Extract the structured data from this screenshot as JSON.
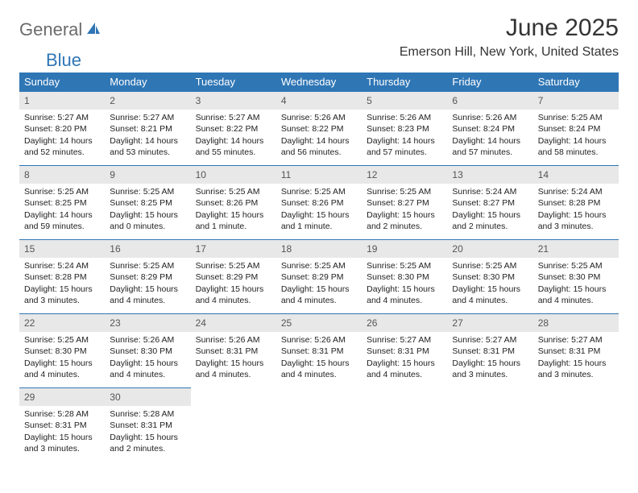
{
  "logo": {
    "part1": "General",
    "part2": "Blue"
  },
  "title": "June 2025",
  "location": "Emerson Hill, New York, United States",
  "colors": {
    "header_bg": "#2f76b5",
    "header_text": "#ffffff",
    "daynum_bg": "#e8e8e8",
    "border": "#2f76b5",
    "logo_gray": "#6b6b6b",
    "logo_blue": "#2f76b5"
  },
  "day_headers": [
    "Sunday",
    "Monday",
    "Tuesday",
    "Wednesday",
    "Thursday",
    "Friday",
    "Saturday"
  ],
  "days": [
    {
      "n": "1",
      "sr": "Sunrise: 5:27 AM",
      "ss": "Sunset: 8:20 PM",
      "dl": "Daylight: 14 hours and 52 minutes."
    },
    {
      "n": "2",
      "sr": "Sunrise: 5:27 AM",
      "ss": "Sunset: 8:21 PM",
      "dl": "Daylight: 14 hours and 53 minutes."
    },
    {
      "n": "3",
      "sr": "Sunrise: 5:27 AM",
      "ss": "Sunset: 8:22 PM",
      "dl": "Daylight: 14 hours and 55 minutes."
    },
    {
      "n": "4",
      "sr": "Sunrise: 5:26 AM",
      "ss": "Sunset: 8:22 PM",
      "dl": "Daylight: 14 hours and 56 minutes."
    },
    {
      "n": "5",
      "sr": "Sunrise: 5:26 AM",
      "ss": "Sunset: 8:23 PM",
      "dl": "Daylight: 14 hours and 57 minutes."
    },
    {
      "n": "6",
      "sr": "Sunrise: 5:26 AM",
      "ss": "Sunset: 8:24 PM",
      "dl": "Daylight: 14 hours and 57 minutes."
    },
    {
      "n": "7",
      "sr": "Sunrise: 5:25 AM",
      "ss": "Sunset: 8:24 PM",
      "dl": "Daylight: 14 hours and 58 minutes."
    },
    {
      "n": "8",
      "sr": "Sunrise: 5:25 AM",
      "ss": "Sunset: 8:25 PM",
      "dl": "Daylight: 14 hours and 59 minutes."
    },
    {
      "n": "9",
      "sr": "Sunrise: 5:25 AM",
      "ss": "Sunset: 8:25 PM",
      "dl": "Daylight: 15 hours and 0 minutes."
    },
    {
      "n": "10",
      "sr": "Sunrise: 5:25 AM",
      "ss": "Sunset: 8:26 PM",
      "dl": "Daylight: 15 hours and 1 minute."
    },
    {
      "n": "11",
      "sr": "Sunrise: 5:25 AM",
      "ss": "Sunset: 8:26 PM",
      "dl": "Daylight: 15 hours and 1 minute."
    },
    {
      "n": "12",
      "sr": "Sunrise: 5:25 AM",
      "ss": "Sunset: 8:27 PM",
      "dl": "Daylight: 15 hours and 2 minutes."
    },
    {
      "n": "13",
      "sr": "Sunrise: 5:24 AM",
      "ss": "Sunset: 8:27 PM",
      "dl": "Daylight: 15 hours and 2 minutes."
    },
    {
      "n": "14",
      "sr": "Sunrise: 5:24 AM",
      "ss": "Sunset: 8:28 PM",
      "dl": "Daylight: 15 hours and 3 minutes."
    },
    {
      "n": "15",
      "sr": "Sunrise: 5:24 AM",
      "ss": "Sunset: 8:28 PM",
      "dl": "Daylight: 15 hours and 3 minutes."
    },
    {
      "n": "16",
      "sr": "Sunrise: 5:25 AM",
      "ss": "Sunset: 8:29 PM",
      "dl": "Daylight: 15 hours and 4 minutes."
    },
    {
      "n": "17",
      "sr": "Sunrise: 5:25 AM",
      "ss": "Sunset: 8:29 PM",
      "dl": "Daylight: 15 hours and 4 minutes."
    },
    {
      "n": "18",
      "sr": "Sunrise: 5:25 AM",
      "ss": "Sunset: 8:29 PM",
      "dl": "Daylight: 15 hours and 4 minutes."
    },
    {
      "n": "19",
      "sr": "Sunrise: 5:25 AM",
      "ss": "Sunset: 8:30 PM",
      "dl": "Daylight: 15 hours and 4 minutes."
    },
    {
      "n": "20",
      "sr": "Sunrise: 5:25 AM",
      "ss": "Sunset: 8:30 PM",
      "dl": "Daylight: 15 hours and 4 minutes."
    },
    {
      "n": "21",
      "sr": "Sunrise: 5:25 AM",
      "ss": "Sunset: 8:30 PM",
      "dl": "Daylight: 15 hours and 4 minutes."
    },
    {
      "n": "22",
      "sr": "Sunrise: 5:25 AM",
      "ss": "Sunset: 8:30 PM",
      "dl": "Daylight: 15 hours and 4 minutes."
    },
    {
      "n": "23",
      "sr": "Sunrise: 5:26 AM",
      "ss": "Sunset: 8:30 PM",
      "dl": "Daylight: 15 hours and 4 minutes."
    },
    {
      "n": "24",
      "sr": "Sunrise: 5:26 AM",
      "ss": "Sunset: 8:31 PM",
      "dl": "Daylight: 15 hours and 4 minutes."
    },
    {
      "n": "25",
      "sr": "Sunrise: 5:26 AM",
      "ss": "Sunset: 8:31 PM",
      "dl": "Daylight: 15 hours and 4 minutes."
    },
    {
      "n": "26",
      "sr": "Sunrise: 5:27 AM",
      "ss": "Sunset: 8:31 PM",
      "dl": "Daylight: 15 hours and 4 minutes."
    },
    {
      "n": "27",
      "sr": "Sunrise: 5:27 AM",
      "ss": "Sunset: 8:31 PM",
      "dl": "Daylight: 15 hours and 3 minutes."
    },
    {
      "n": "28",
      "sr": "Sunrise: 5:27 AM",
      "ss": "Sunset: 8:31 PM",
      "dl": "Daylight: 15 hours and 3 minutes."
    },
    {
      "n": "29",
      "sr": "Sunrise: 5:28 AM",
      "ss": "Sunset: 8:31 PM",
      "dl": "Daylight: 15 hours and 3 minutes."
    },
    {
      "n": "30",
      "sr": "Sunrise: 5:28 AM",
      "ss": "Sunset: 8:31 PM",
      "dl": "Daylight: 15 hours and 2 minutes."
    }
  ]
}
